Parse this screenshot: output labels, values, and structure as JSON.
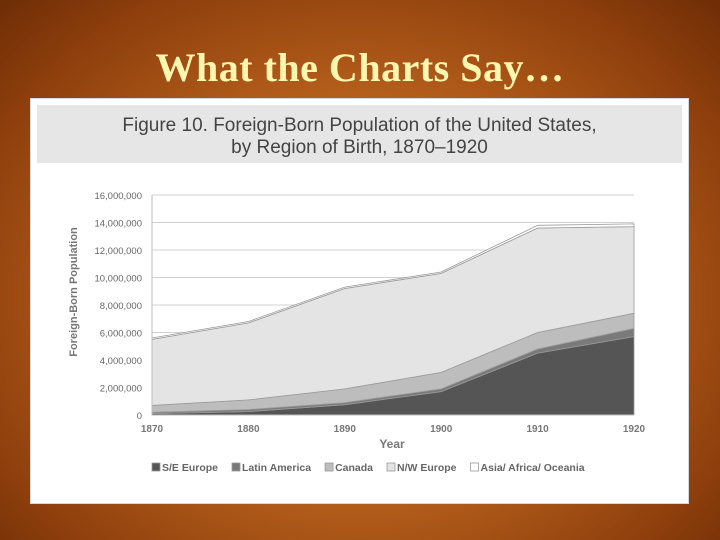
{
  "slide": {
    "title": "What the Charts Say…"
  },
  "chart_data": {
    "type": "area",
    "stacked": true,
    "title_line1": "Figure 10. Foreign-Born Population of the United States,",
    "title_line2": "by Region of Birth, 1870–1920",
    "xlabel": "Year",
    "ylabel": "Foreign-Born Population",
    "x": [
      1870,
      1880,
      1890,
      1900,
      1910,
      1920
    ],
    "x_tick_labels": [
      "1870",
      "1880",
      "1890",
      "1900",
      "1910",
      "1920"
    ],
    "ylim": [
      0,
      16000000
    ],
    "y_ticks": [
      0,
      2000000,
      4000000,
      6000000,
      8000000,
      10000000,
      12000000,
      14000000,
      16000000
    ],
    "y_tick_labels": [
      "0",
      "2,000,000",
      "4,000,000",
      "6,000,000",
      "8,000,000",
      "10,000,000",
      "12,000,000",
      "14,000,000",
      "16,000,000"
    ],
    "grid": true,
    "legend_position": "bottom",
    "series": [
      {
        "name": "S/E Europe",
        "color": "#555555",
        "values": [
          100000,
          250000,
          750000,
          1700000,
          4500000,
          5700000
        ]
      },
      {
        "name": "Latin America",
        "color": "#7a7a7a",
        "values": [
          100000,
          150000,
          150000,
          200000,
          300000,
          600000
        ]
      },
      {
        "name": "Canada",
        "color": "#bdbdbd",
        "values": [
          500000,
          700000,
          1000000,
          1200000,
          1200000,
          1100000
        ]
      },
      {
        "name": "N/W Europe",
        "color": "#e4e4e4",
        "values": [
          4800000,
          5600000,
          7300000,
          7200000,
          7600000,
          6300000
        ]
      },
      {
        "name": "Asia/ Africa/ Oceania",
        "color": "#ffffff",
        "values": [
          100000,
          100000,
          100000,
          100000,
          200000,
          200000
        ]
      }
    ]
  }
}
